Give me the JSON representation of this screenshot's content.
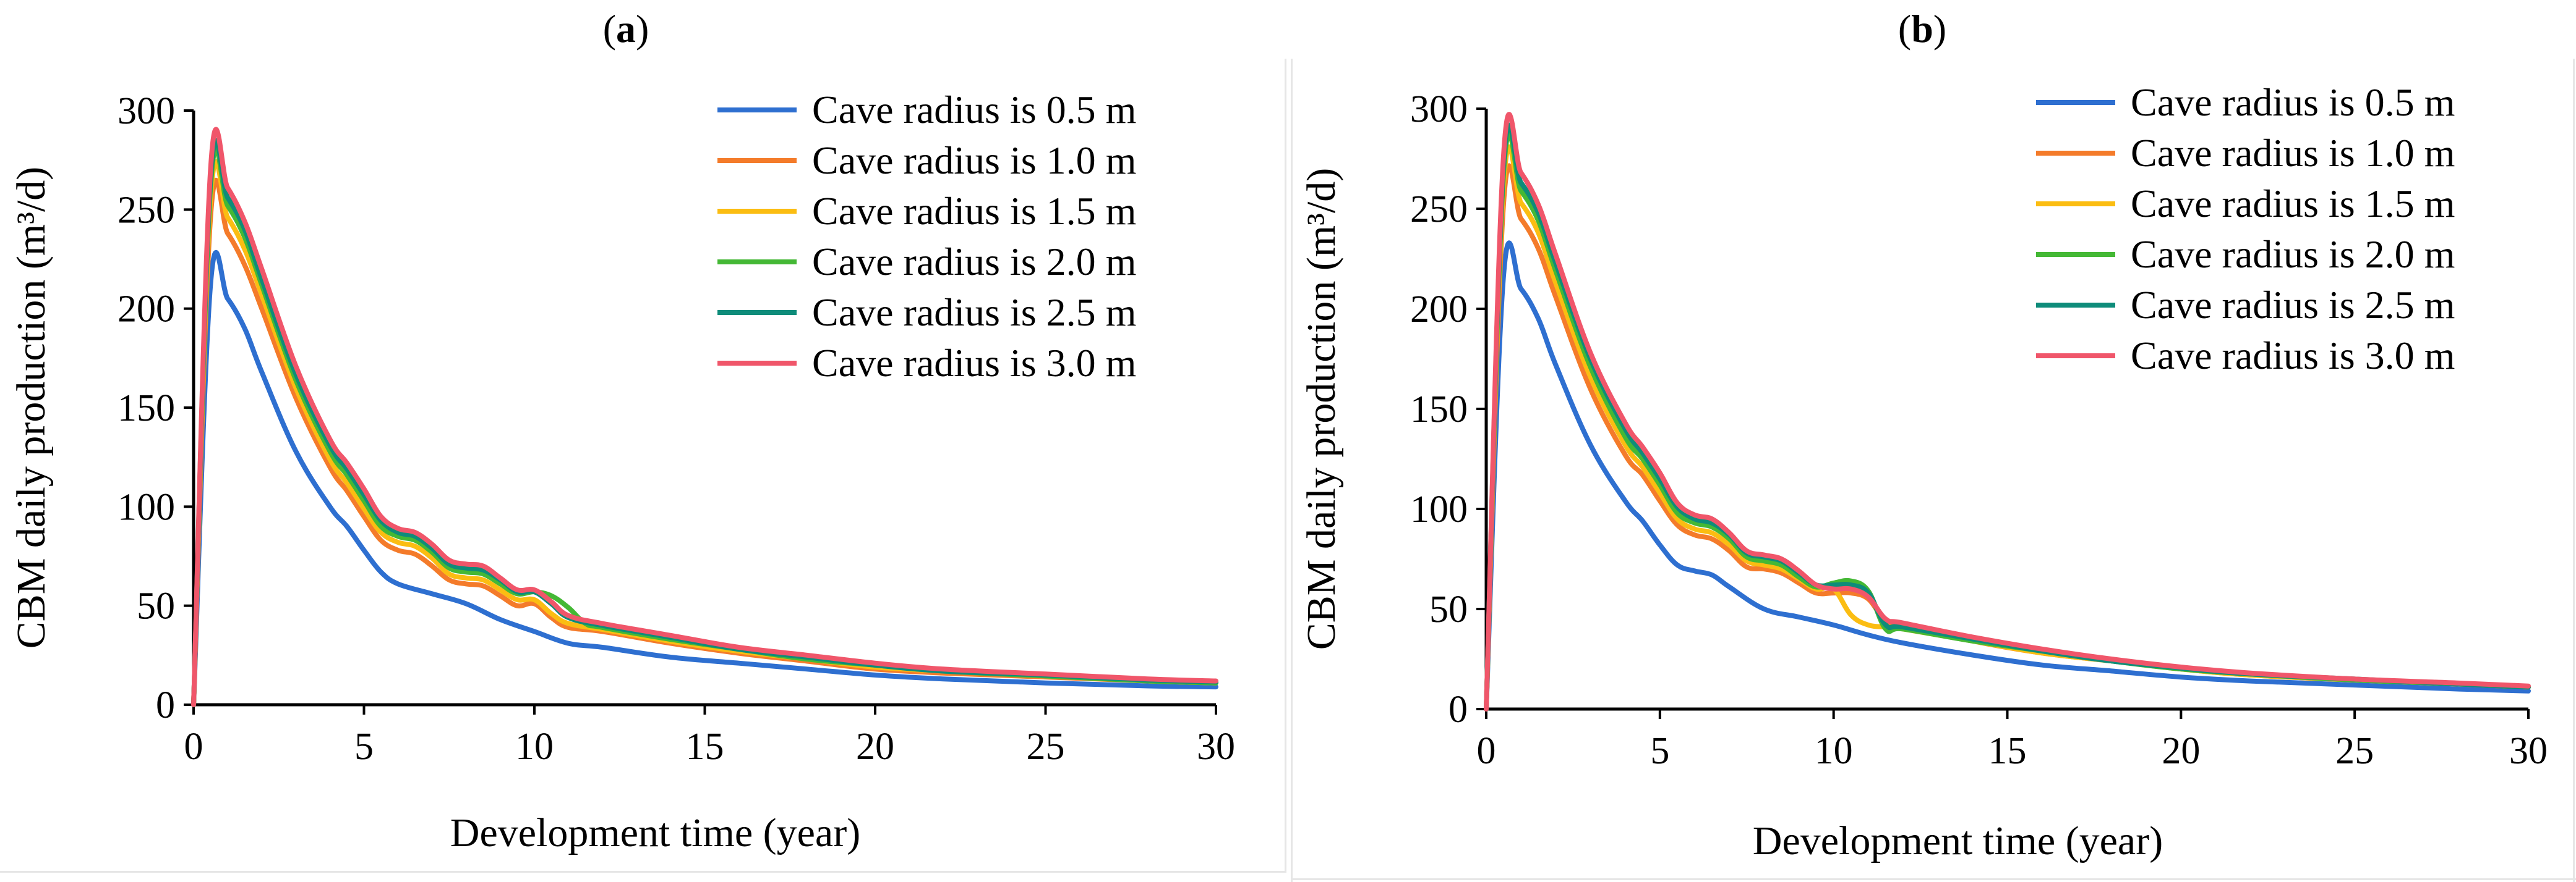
{
  "chart_data": [
    {
      "type": "line",
      "panel_label": "a",
      "title": "",
      "xlabel": "Development time (year)",
      "ylabel": "CBM daily production (m³/d)",
      "xlim": [
        0,
        30
      ],
      "ylim": [
        0,
        300
      ],
      "xticks": [
        0,
        5,
        10,
        15,
        20,
        25,
        30
      ],
      "yticks": [
        0,
        50,
        100,
        150,
        200,
        250,
        300
      ],
      "legend_position": "top-right",
      "series": [
        {
          "name": "Cave radius is 0.5 m",
          "color": "#2e6fd0",
          "x": [
            0,
            0.5,
            1,
            1.5,
            2,
            3,
            4,
            4.5,
            5,
            5.5,
            6,
            7,
            8,
            9,
            10,
            11,
            12,
            14,
            16,
            18,
            20,
            22,
            25,
            28,
            30
          ],
          "y": [
            0,
            213,
            205,
            190,
            168,
            128,
            100,
            90,
            78,
            67,
            61,
            56,
            51,
            43,
            37,
            31,
            29,
            24,
            21,
            18,
            15,
            13,
            11,
            9.5,
            9
          ]
        },
        {
          "name": "Cave radius is 1.0 m",
          "color": "#f47b2a",
          "x": [
            0,
            0.5,
            1,
            1.5,
            2,
            3,
            4,
            4.5,
            5,
            5.5,
            6,
            6.5,
            7,
            7.5,
            8,
            8.5,
            9,
            9.5,
            10,
            10.5,
            11,
            12,
            14,
            16,
            18,
            20,
            22,
            25,
            28,
            30
          ],
          "y": [
            0,
            247,
            238,
            222,
            200,
            155,
            120,
            108,
            95,
            83,
            78,
            76,
            70,
            63,
            61,
            60,
            55,
            50,
            51,
            44,
            39,
            37,
            31,
            26,
            22,
            18,
            16,
            14,
            12,
            11
          ]
        },
        {
          "name": "Cave radius is 1.5 m",
          "color": "#fbbd12",
          "x": [
            0,
            0.5,
            1,
            1.5,
            2,
            3,
            4,
            4.5,
            5,
            5.5,
            6,
            6.5,
            7,
            7.5,
            8,
            8.5,
            9,
            9.5,
            10,
            10.5,
            11,
            12,
            14,
            16,
            18,
            20,
            22,
            25,
            28,
            30
          ],
          "y": [
            0,
            256,
            246,
            230,
            207,
            160,
            124,
            112,
            99,
            87,
            82,
            80,
            74,
            66,
            64,
            63,
            58,
            53,
            53,
            46,
            41,
            38,
            32,
            27,
            23,
            19,
            17,
            14.5,
            12,
            11
          ]
        },
        {
          "name": "Cave radius is 2.0 m",
          "color": "#44b835",
          "x": [
            0,
            0.5,
            1,
            1.5,
            2,
            3,
            4,
            4.5,
            5,
            5.5,
            6,
            6.5,
            7,
            7.5,
            8,
            8.5,
            9,
            9.5,
            10,
            10.5,
            11,
            11.5,
            12,
            14,
            16,
            18,
            20,
            22,
            25,
            28,
            30
          ],
          "y": [
            0,
            262,
            252,
            236,
            212,
            164,
            128,
            116,
            103,
            90,
            85,
            83,
            77,
            69,
            67,
            66,
            61,
            56,
            57,
            55,
            49,
            41,
            39,
            33,
            28,
            23,
            20,
            17,
            14.5,
            12,
            11
          ]
        },
        {
          "name": "Cave radius is 2.5 m",
          "color": "#0e8c7a",
          "x": [
            0,
            0.5,
            1,
            1.5,
            2,
            3,
            4,
            4.5,
            5,
            5.5,
            6,
            6.5,
            7,
            7.5,
            8,
            8.5,
            9,
            9.5,
            10,
            10.5,
            11,
            12,
            14,
            16,
            18,
            20,
            22,
            25,
            28,
            30
          ],
          "y": [
            0,
            266,
            256,
            240,
            215,
            167,
            131,
            119,
            106,
            93,
            87,
            85,
            79,
            71,
            69,
            68,
            63,
            57,
            57,
            51,
            44,
            40,
            34,
            28,
            24,
            20,
            17,
            15,
            12.5,
            11.5
          ]
        },
        {
          "name": "Cave radius is 3.0 m",
          "color": "#f0566a",
          "x": [
            0,
            0.5,
            1,
            1.5,
            2,
            3,
            4,
            4.5,
            5,
            5.5,
            6,
            6.5,
            7,
            7.5,
            8,
            8.5,
            9,
            9.5,
            10,
            10.5,
            11,
            12,
            14,
            16,
            18,
            20,
            22,
            25,
            28,
            30
          ],
          "y": [
            0,
            271,
            261,
            244,
            220,
            171,
            134,
            122,
            109,
            95,
            89,
            87,
            81,
            73,
            71,
            70,
            64,
            58,
            58,
            52,
            45,
            41,
            35,
            29,
            25,
            21,
            18,
            15.5,
            13,
            12
          ]
        }
      ]
    },
    {
      "type": "line",
      "panel_label": "b",
      "title": "",
      "xlabel": "Development time (year)",
      "ylabel": "CBM daily production (m³/d)",
      "xlim": [
        0,
        30
      ],
      "ylim": [
        0,
        300
      ],
      "xticks": [
        0,
        5,
        10,
        15,
        20,
        25,
        30
      ],
      "yticks": [
        0,
        50,
        100,
        150,
        200,
        250,
        300
      ],
      "legend_position": "top-right",
      "series": [
        {
          "name": "Cave radius is 0.5 m",
          "color": "#2e6fd0",
          "x": [
            0,
            0.5,
            1,
            1.5,
            2,
            3,
            4,
            4.5,
            5,
            5.5,
            6,
            6.5,
            7,
            8,
            9,
            10,
            11,
            12,
            14,
            16,
            18,
            20,
            22,
            25,
            28,
            30
          ],
          "y": [
            0,
            217,
            210,
            195,
            172,
            132,
            104,
            94,
            82,
            72,
            69,
            67,
            61,
            50,
            46,
            42,
            37,
            33,
            27,
            22,
            19,
            16,
            14,
            12,
            10,
            9
          ]
        },
        {
          "name": "Cave radius is 1.0 m",
          "color": "#f47b2a",
          "x": [
            0,
            0.5,
            1,
            1.5,
            2,
            3,
            4,
            4.5,
            5,
            5.5,
            6,
            6.5,
            7,
            7.5,
            8,
            8.5,
            9,
            9.5,
            10,
            10.5,
            11,
            11.5,
            12,
            14,
            16,
            18,
            20,
            22,
            25,
            28,
            30
          ],
          "y": [
            0,
            253,
            245,
            230,
            206,
            160,
            127,
            117,
            104,
            92,
            87,
            85,
            79,
            71,
            70,
            68,
            63,
            58,
            58,
            58,
            55,
            44,
            42,
            34,
            28,
            24,
            20,
            17,
            14.5,
            12.5,
            11
          ]
        },
        {
          "name": "Cave radius is 1.5 m",
          "color": "#fbbd12",
          "x": [
            0,
            0.5,
            1,
            1.5,
            2,
            3,
            4,
            4.5,
            5,
            5.5,
            6,
            6.5,
            7,
            7.5,
            8,
            8.5,
            9,
            9.5,
            10,
            10.5,
            11,
            11.5,
            12,
            14,
            16,
            18,
            20,
            22,
            25,
            28,
            30
          ],
          "y": [
            0,
            262,
            253,
            238,
            213,
            166,
            132,
            121,
            108,
            95,
            90,
            88,
            82,
            74,
            72,
            70,
            65,
            60,
            60,
            47,
            42,
            41,
            40,
            34,
            28,
            24,
            20,
            17,
            14.5,
            12.5,
            11
          ]
        },
        {
          "name": "Cave radius is 2.0 m",
          "color": "#44b835",
          "x": [
            0,
            0.5,
            1,
            1.5,
            2,
            3,
            4,
            4.5,
            5,
            5.5,
            6,
            6.5,
            7,
            7.5,
            8,
            8.5,
            9,
            9.5,
            10,
            10.5,
            11,
            11.5,
            12,
            14,
            16,
            18,
            20,
            22,
            25,
            28,
            30
          ],
          "y": [
            0,
            268,
            259,
            244,
            219,
            171,
            136,
            125,
            112,
            98,
            93,
            91,
            85,
            76,
            74,
            72,
            66,
            61,
            63,
            64,
            59,
            40,
            40,
            34,
            29,
            24,
            20,
            17.5,
            14.5,
            12.5,
            11
          ]
        },
        {
          "name": "Cave radius is 2.5 m",
          "color": "#0e8c7a",
          "x": [
            0,
            0.5,
            1,
            1.5,
            2,
            3,
            4,
            4.5,
            5,
            5.5,
            6,
            6.5,
            7,
            7.5,
            8,
            8.5,
            9,
            9.5,
            10,
            10.5,
            11,
            11.5,
            12,
            14,
            16,
            18,
            20,
            22,
            25,
            28,
            30
          ],
          "y": [
            0,
            272,
            263,
            248,
            223,
            175,
            140,
            128,
            115,
            101,
            95,
            93,
            87,
            78,
            76,
            74,
            68,
            62,
            62,
            62,
            58,
            42,
            41,
            35,
            29,
            24,
            20.5,
            17.5,
            15,
            12.5,
            11
          ]
        },
        {
          "name": "Cave radius is 3.0 m",
          "color": "#f0566a",
          "x": [
            0,
            0.5,
            1,
            1.5,
            2,
            3,
            4,
            4.5,
            5,
            5.5,
            6,
            6.5,
            7,
            7.5,
            8,
            8.5,
            9,
            9.5,
            10,
            10.5,
            11,
            11.5,
            12,
            14,
            16,
            18,
            20,
            22,
            25,
            28,
            30
          ],
          "y": [
            0,
            277,
            268,
            252,
            227,
            178,
            143,
            131,
            118,
            103,
            97,
            95,
            88,
            79,
            77,
            75,
            69,
            62,
            60,
            60,
            56,
            45,
            43,
            36,
            30,
            25,
            21,
            18,
            15,
            13,
            11.5
          ]
        }
      ]
    }
  ]
}
